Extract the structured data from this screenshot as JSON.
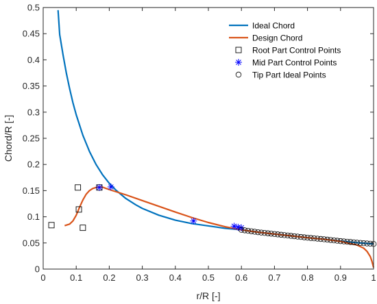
{
  "chart_data": {
    "type": "line",
    "xlabel": "r/R [-]",
    "ylabel": "Chord/R [-]",
    "xlim": [
      0,
      1
    ],
    "ylim": [
      0,
      0.5
    ],
    "xticks": [
      "0",
      "0.1",
      "0.2",
      "0.3",
      "0.4",
      "0.5",
      "0.6",
      "0.7",
      "0.8",
      "0.9",
      "1"
    ],
    "yticks": [
      "0",
      "0.05",
      "0.1",
      "0.15",
      "0.2",
      "0.25",
      "0.3",
      "0.35",
      "0.4",
      "0.45",
      "0.5"
    ],
    "grid": false,
    "legend_position": "top-right",
    "series": [
      {
        "name": "Ideal Chord",
        "kind": "line",
        "color": "#0072BD",
        "x": [
          0.045,
          0.05,
          0.06,
          0.07,
          0.08,
          0.09,
          0.1,
          0.12,
          0.14,
          0.16,
          0.18,
          0.2,
          0.22,
          0.25,
          0.28,
          0.3,
          0.35,
          0.4,
          0.45,
          0.5,
          0.55,
          0.6,
          0.65,
          0.7,
          0.75,
          0.8,
          0.85,
          0.9,
          0.95,
          1.0
        ],
        "y": [
          0.495,
          0.448,
          0.41,
          0.375,
          0.345,
          0.318,
          0.295,
          0.256,
          0.225,
          0.2,
          0.18,
          0.164,
          0.151,
          0.135,
          0.123,
          0.116,
          0.103,
          0.0935,
          0.087,
          0.0825,
          0.078,
          0.075,
          0.0705,
          0.067,
          0.0635,
          0.06,
          0.057,
          0.0535,
          0.0505,
          0.048
        ]
      },
      {
        "name": "Design Chord",
        "kind": "line",
        "color": "#D95319",
        "x": [
          0.065,
          0.08,
          0.09,
          0.1,
          0.11,
          0.12,
          0.13,
          0.14,
          0.15,
          0.16,
          0.17,
          0.18,
          0.2,
          0.25,
          0.3,
          0.35,
          0.4,
          0.45,
          0.5,
          0.55,
          0.6,
          0.65,
          0.7,
          0.75,
          0.8,
          0.85,
          0.9,
          0.95,
          0.97,
          0.98,
          0.99,
          0.995,
          1.0
        ],
        "y": [
          0.083,
          0.086,
          0.092,
          0.103,
          0.118,
          0.132,
          0.143,
          0.15,
          0.154,
          0.156,
          0.157,
          0.1565,
          0.152,
          0.142,
          0.131,
          0.12,
          0.109,
          0.0985,
          0.089,
          0.081,
          0.075,
          0.0705,
          0.067,
          0.0635,
          0.06,
          0.057,
          0.053,
          0.046,
          0.04,
          0.034,
          0.024,
          0.015,
          0.003
        ]
      },
      {
        "name": "Root Part Control Points",
        "kind": "marker",
        "marker": "square",
        "color": "#000000",
        "x": [
          0.025,
          0.105,
          0.108,
          0.12,
          0.17
        ],
        "y": [
          0.084,
          0.156,
          0.114,
          0.079,
          0.156
        ]
      },
      {
        "name": "Mid Part Control Points",
        "kind": "marker",
        "marker": "asterisk",
        "color": "#0000FF",
        "x": [
          0.17,
          0.205,
          0.455,
          0.578,
          0.59,
          0.6
        ],
        "y": [
          0.156,
          0.157,
          0.092,
          0.082,
          0.08,
          0.079
        ]
      },
      {
        "name": "Tip Part Ideal Points",
        "kind": "marker",
        "marker": "circle",
        "color": "#000000",
        "x": [
          0.6,
          0.61,
          0.62,
          0.63,
          0.64,
          0.65,
          0.66,
          0.67,
          0.68,
          0.69,
          0.7,
          0.71,
          0.72,
          0.73,
          0.74,
          0.75,
          0.76,
          0.77,
          0.78,
          0.79,
          0.8,
          0.81,
          0.82,
          0.83,
          0.84,
          0.85,
          0.86,
          0.87,
          0.88,
          0.89,
          0.9,
          0.91,
          0.92,
          0.93,
          0.94,
          0.95,
          0.96,
          0.97,
          0.98,
          0.99,
          1.0
        ],
        "y": [
          0.075,
          0.0741,
          0.0732,
          0.0723,
          0.0714,
          0.0705,
          0.0698,
          0.0691,
          0.0684,
          0.0677,
          0.067,
          0.0663,
          0.0656,
          0.0649,
          0.0642,
          0.0635,
          0.0628,
          0.0621,
          0.0614,
          0.0607,
          0.06,
          0.0594,
          0.0588,
          0.0582,
          0.0576,
          0.057,
          0.0563,
          0.0556,
          0.0549,
          0.0542,
          0.0535,
          0.0529,
          0.0523,
          0.0517,
          0.0511,
          0.0505,
          0.05,
          0.0495,
          0.049,
          0.0485,
          0.048
        ]
      }
    ]
  }
}
